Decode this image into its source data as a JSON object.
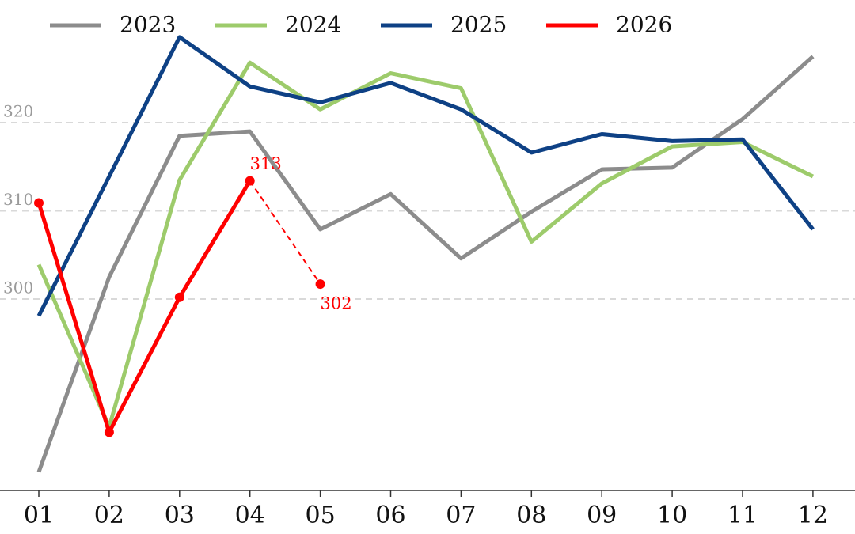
{
  "chart_data": {
    "type": "line",
    "categories": [
      "01",
      "02",
      "03",
      "04",
      "05",
      "06",
      "07",
      "08",
      "09",
      "10",
      "11",
      "12"
    ],
    "series": [
      {
        "name": "2023",
        "color": "#8c8c8c",
        "values": [
          280.4,
          302.5,
          318.5,
          319.0,
          307.9,
          311.9,
          304.6,
          309.9,
          314.7,
          314.9,
          320.4,
          327.5
        ]
      },
      {
        "name": "2024",
        "color": "#9dcb6b",
        "values": [
          303.9,
          285.5,
          313.5,
          326.8,
          321.5,
          325.6,
          323.9,
          306.5,
          313.1,
          317.3,
          317.8,
          313.9
        ]
      },
      {
        "name": "2025",
        "color": "#0e4185",
        "values": [
          298.1,
          313.9,
          329.7,
          324.1,
          322.3,
          324.5,
          321.5,
          316.6,
          318.7,
          317.9,
          318.1,
          307.9
        ]
      },
      {
        "name": "2026",
        "color": "#ff0000",
        "values": [
          310.9,
          284.9,
          300.2,
          313.4,
          301.7,
          null,
          null,
          null,
          null,
          null,
          null,
          null
        ],
        "value_labels": [
          null,
          null,
          null,
          "313",
          "302",
          null,
          null,
          null,
          null,
          null,
          null,
          null
        ],
        "markers": true,
        "dashed_last_segment": true
      }
    ],
    "ylim": [
      278.3,
      333.9
    ],
    "yticks": [
      300,
      310,
      320
    ],
    "grid": true,
    "legend": "top"
  }
}
